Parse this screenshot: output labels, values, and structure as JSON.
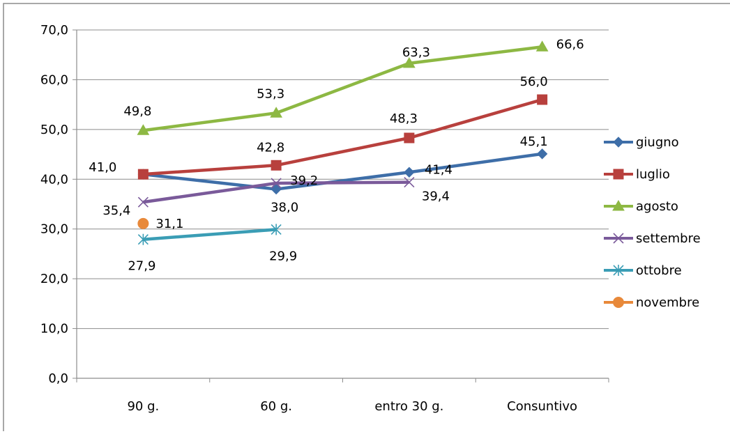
{
  "chart_data": {
    "type": "line",
    "categories": [
      "90 g.",
      "60 g.",
      "entro 30 g.",
      "Consuntivo"
    ],
    "ylim": [
      0,
      70
    ],
    "yticks": [
      "0,0",
      "10,0",
      "20,0",
      "30,0",
      "40,0",
      "50,0",
      "60,0",
      "70,0"
    ],
    "grid": true,
    "legend": "right",
    "series": [
      {
        "name": "giugno",
        "color": "#3E6EA8",
        "marker": "diamond",
        "values": [
          41.0,
          38.0,
          41.4,
          45.1
        ],
        "labels": [
          "41,0",
          "38,0",
          "41,4",
          "45,1"
        ]
      },
      {
        "name": "luglio",
        "color": "#B8403D",
        "marker": "square",
        "values": [
          41.0,
          42.8,
          48.3,
          56.0
        ],
        "labels": [
          "",
          "42,8",
          "48,3",
          "56,0"
        ]
      },
      {
        "name": "agosto",
        "color": "#8DB843",
        "marker": "triangle",
        "values": [
          49.8,
          53.3,
          63.3,
          66.6
        ],
        "labels": [
          "49,8",
          "53,3",
          "63,3",
          "66,6"
        ]
      },
      {
        "name": "settembre",
        "color": "#7A5A9A",
        "marker": "x",
        "values": [
          35.4,
          39.2,
          39.4,
          null
        ],
        "labels": [
          "35,4",
          "39,2",
          "39,4",
          ""
        ]
      },
      {
        "name": "ottobre",
        "color": "#3A9DB5",
        "marker": "star",
        "values": [
          27.9,
          29.9,
          null,
          null
        ],
        "labels": [
          "27,9",
          "29,9",
          "",
          ""
        ]
      },
      {
        "name": "novembre",
        "color": "#E8893A",
        "marker": "circle",
        "values": [
          31.1,
          null,
          null,
          null
        ],
        "labels": [
          "31,1",
          "",
          "",
          ""
        ]
      }
    ]
  }
}
